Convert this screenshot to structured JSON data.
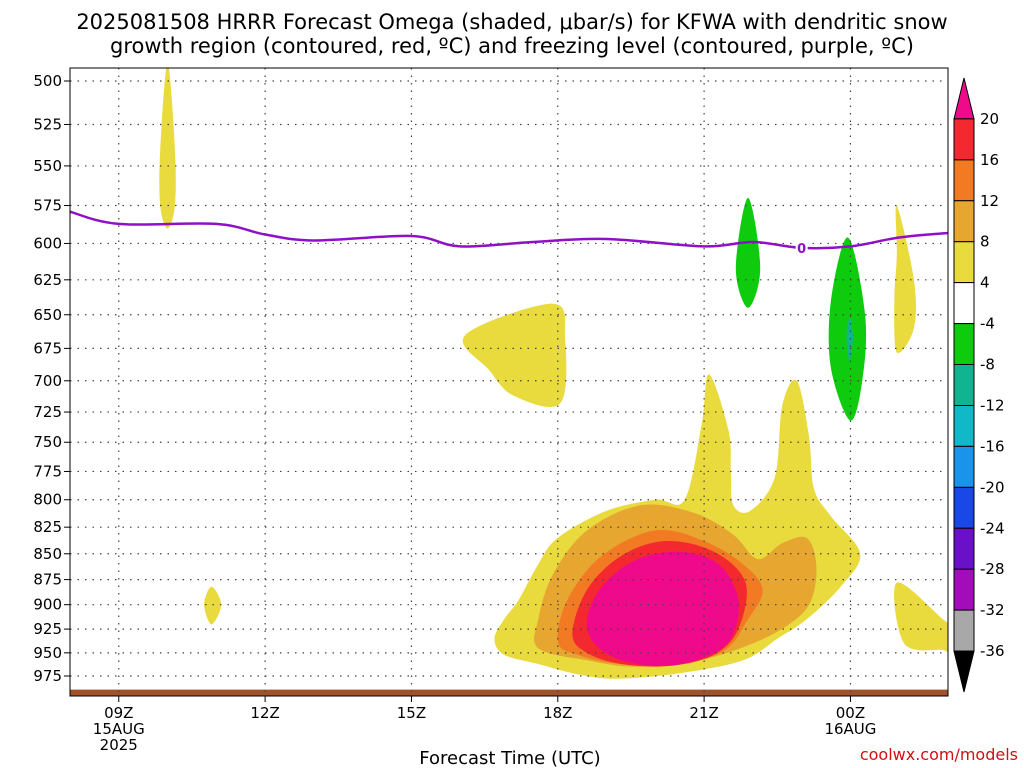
{
  "title_line1": "2025081508 HRRR Forecast Omega (shaded, μbar/s) for KFWA with dendritic snow",
  "title_line2": "growth region (contoured, red, ºC) and freezing level (contoured, purple, ºC)",
  "credit": "coolwx.com/models",
  "chart_data": {
    "type": "heatmap",
    "title": "2025081508 HRRR Forecast Omega (shaded, μbar/s) for KFWA with dendritic snow growth region (contoured, red, ºC) and freezing level (contoured, purple, ºC)",
    "xlabel": "Forecast Time (UTC)",
    "ylabel": "",
    "station": "KFWA",
    "run": "2025081508",
    "x_unit": "hours UTC from 2025-08-15 00Z",
    "xlim": [
      8,
      26
    ],
    "ylim": [
      1000,
      490
    ],
    "y_scale": "log-pressure (inverted)",
    "grid": true,
    "x_ticks": [
      {
        "value": 9,
        "label": [
          "09Z",
          "15AUG",
          "2025"
        ]
      },
      {
        "value": 12,
        "label": [
          "12Z"
        ]
      },
      {
        "value": 15,
        "label": [
          "15Z"
        ]
      },
      {
        "value": 18,
        "label": [
          "18Z"
        ]
      },
      {
        "value": 21,
        "label": [
          "21Z"
        ]
      },
      {
        "value": 24,
        "label": [
          "00Z",
          "16AUG"
        ]
      }
    ],
    "y_ticks": [
      500,
      525,
      550,
      575,
      600,
      625,
      650,
      675,
      700,
      725,
      750,
      775,
      800,
      825,
      850,
      875,
      900,
      925,
      950,
      975
    ],
    "colorbar": {
      "labels": [
        "20",
        "16",
        "12",
        "8",
        "4",
        "-4",
        "-8",
        "-12",
        "-16",
        "-20",
        "-24",
        "-28",
        "-32",
        "-36"
      ],
      "colors": [
        "#ee0a8a",
        "#f4282f",
        "#f27a22",
        "#e6a630",
        "#e9da3e",
        "#ffffff",
        "#0ecb0e",
        "#10b491",
        "#10b8c8",
        "#1a94ea",
        "#1a48e6",
        "#6a10c8",
        "#a20cb9",
        "#a8a8a8",
        "#000000"
      ]
    },
    "freezing_level": {
      "label": "0",
      "color": "#9010c8",
      "label_point": {
        "x": 23.0,
        "p": 603
      },
      "points": [
        [
          8,
          579
        ],
        [
          9,
          587
        ],
        [
          11,
          587
        ],
        [
          12,
          594
        ],
        [
          13,
          598
        ],
        [
          15,
          595
        ],
        [
          16,
          602
        ],
        [
          17.5,
          599
        ],
        [
          19,
          597
        ],
        [
          21,
          602
        ],
        [
          22,
          599
        ],
        [
          23,
          603
        ],
        [
          24,
          602
        ],
        [
          25,
          596
        ],
        [
          26,
          593
        ]
      ]
    },
    "regions": [
      {
        "value": 4,
        "label": "4 to 8",
        "color": "#e9da3e",
        "points": [
          [
            10.0,
            490
          ],
          [
            10.15,
            540
          ],
          [
            10.15,
            575
          ],
          [
            10.0,
            590
          ],
          [
            9.85,
            575
          ],
          [
            9.85,
            540
          ]
        ]
      },
      {
        "value": 4,
        "label": "4 to 8",
        "color": "#e9da3e",
        "points": [
          [
            10.9,
            882
          ],
          [
            11.1,
            900
          ],
          [
            10.9,
            920
          ],
          [
            10.75,
            900
          ]
        ]
      },
      {
        "value": 4,
        "label": "4 to 8",
        "color": "#e9da3e",
        "points": [
          [
            16.1,
            665
          ],
          [
            17.9,
            642
          ],
          [
            18.15,
            668
          ],
          [
            18.05,
            718
          ],
          [
            17.1,
            712
          ],
          [
            16.6,
            692
          ]
        ]
      },
      {
        "value": 4,
        "label": "4 to 8",
        "color": "#e9da3e",
        "points": [
          [
            24.95,
            575
          ],
          [
            25.3,
            625
          ],
          [
            25.3,
            660
          ],
          [
            24.95,
            678
          ],
          [
            24.9,
            640
          ],
          [
            24.95,
            608
          ]
        ]
      },
      {
        "value": 4,
        "label": "4 to 8",
        "color": "#e9da3e",
        "points": [
          [
            24.95,
            878
          ],
          [
            25.9,
            915
          ],
          [
            26,
            920
          ],
          [
            26,
            950
          ],
          [
            25.9,
            947
          ],
          [
            25.1,
            940
          ]
        ]
      },
      {
        "value": 4,
        "label": "4 to 8",
        "color": "#e9da3e",
        "points": [
          [
            16.7,
            935
          ],
          [
            16.9,
            915
          ],
          [
            17.2,
            895
          ],
          [
            17.6,
            860
          ],
          [
            18.0,
            835
          ],
          [
            19.0,
            810
          ],
          [
            20.0,
            800
          ],
          [
            20.6,
            800
          ],
          [
            20.95,
            735
          ],
          [
            21.1,
            695
          ],
          [
            21.5,
            740
          ],
          [
            21.55,
            775
          ],
          [
            21.6,
            805
          ],
          [
            21.95,
            810
          ],
          [
            22.45,
            780
          ],
          [
            22.6,
            720
          ],
          [
            22.9,
            700
          ],
          [
            23.15,
            745
          ],
          [
            23.25,
            790
          ],
          [
            23.6,
            815
          ],
          [
            24.2,
            850
          ],
          [
            23.8,
            882
          ],
          [
            23.1,
            915
          ],
          [
            22.5,
            935
          ],
          [
            21.8,
            958
          ],
          [
            20.5,
            972
          ],
          [
            19.2,
            978
          ],
          [
            18.4,
            973
          ],
          [
            17.6,
            962
          ],
          [
            16.9,
            952
          ]
        ]
      },
      {
        "value": 8,
        "label": "8 to 12",
        "color": "#e6a630",
        "points": [
          [
            17.6,
            945
          ],
          [
            17.6,
            915
          ],
          [
            17.9,
            870
          ],
          [
            18.6,
            828
          ],
          [
            19.7,
            805
          ],
          [
            20.8,
            812
          ],
          [
            21.6,
            832
          ],
          [
            22.1,
            855
          ],
          [
            22.6,
            840
          ],
          [
            23.1,
            835
          ],
          [
            23.3,
            860
          ],
          [
            23.2,
            895
          ],
          [
            22.8,
            918
          ],
          [
            22.0,
            940
          ],
          [
            20.9,
            958
          ],
          [
            19.6,
            965
          ],
          [
            18.6,
            958
          ]
        ]
      },
      {
        "value": 12,
        "label": "12 to 16",
        "color": "#f27a22",
        "points": [
          [
            18.0,
            938
          ],
          [
            18.2,
            895
          ],
          [
            18.9,
            852
          ],
          [
            20.0,
            828
          ],
          [
            21.0,
            838
          ],
          [
            21.8,
            860
          ],
          [
            22.2,
            885
          ],
          [
            21.9,
            915
          ],
          [
            21.4,
            948
          ],
          [
            20.4,
            962
          ],
          [
            19.3,
            962
          ],
          [
            18.4,
            952
          ]
        ]
      },
      {
        "value": 16,
        "label": "16 to 20",
        "color": "#f4282f",
        "points": [
          [
            18.3,
            930
          ],
          [
            18.6,
            885
          ],
          [
            19.3,
            852
          ],
          [
            20.2,
            838
          ],
          [
            21.2,
            848
          ],
          [
            21.85,
            878
          ],
          [
            21.7,
            925
          ],
          [
            21.2,
            952
          ],
          [
            20.3,
            964
          ],
          [
            19.3,
            962
          ],
          [
            18.6,
            950
          ]
        ]
      },
      {
        "value": 20,
        "label": "20+",
        "color": "#ee0a8a",
        "points": [
          [
            18.6,
            915
          ],
          [
            18.9,
            882
          ],
          [
            19.6,
            856
          ],
          [
            20.5,
            848
          ],
          [
            21.3,
            860
          ],
          [
            21.7,
            895
          ],
          [
            21.55,
            935
          ],
          [
            21.0,
            955
          ],
          [
            20.2,
            964
          ],
          [
            19.3,
            958
          ],
          [
            18.75,
            940
          ]
        ]
      },
      {
        "value": -4,
        "label": "-8 to -4",
        "color": "#0ecb0e",
        "points": [
          [
            21.9,
            570
          ],
          [
            22.15,
            617
          ],
          [
            21.9,
            645
          ],
          [
            21.65,
            617
          ]
        ]
      },
      {
        "value": -4,
        "label": "-8 to -4",
        "color": "#0ecb0e",
        "points": [
          [
            23.95,
            596
          ],
          [
            24.3,
            650
          ],
          [
            24.25,
            698
          ],
          [
            24.0,
            732
          ],
          [
            23.6,
            690
          ],
          [
            23.6,
            640
          ]
        ]
      },
      {
        "value": -8,
        "label": "-12 to -8",
        "color": "#10b491",
        "points": [
          [
            23.98,
            652
          ],
          [
            24.05,
            667
          ],
          [
            23.98,
            685
          ],
          [
            23.92,
            667
          ]
        ]
      }
    ],
    "ground": {
      "color": "#a0522d",
      "pressure": 990
    }
  }
}
